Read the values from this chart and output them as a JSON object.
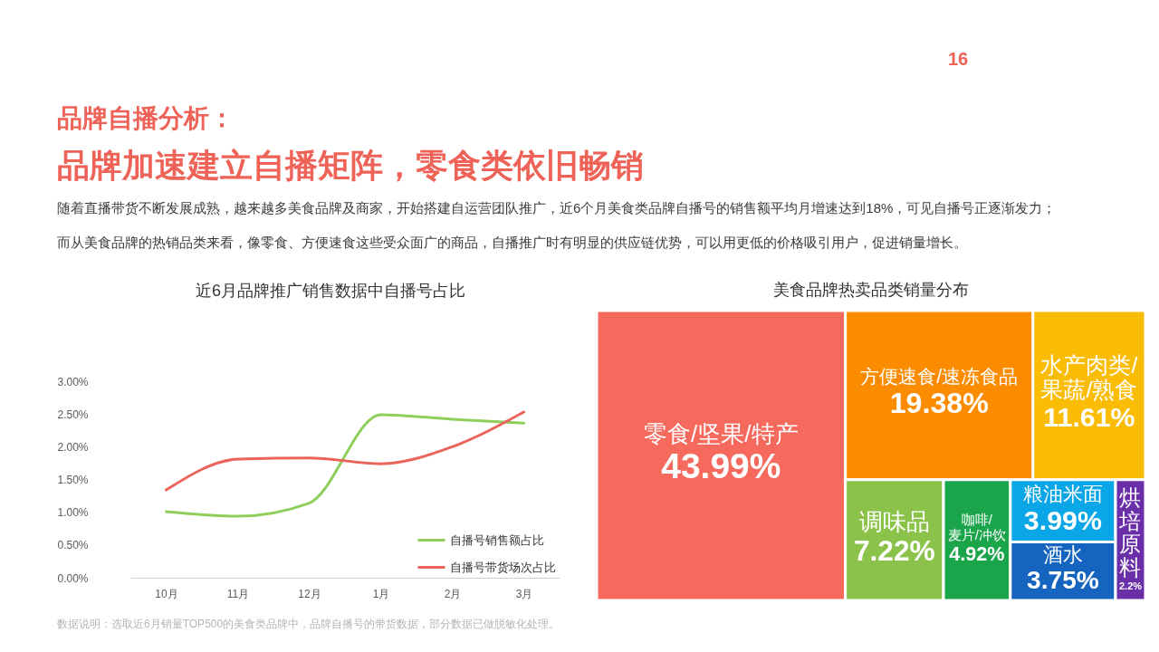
{
  "chart_data": [
    {
      "type": "other",
      "title": "品牌自播分析：",
      "subtitle": "品牌加速建立自播矩阵，零食类依旧畅销",
      "annotations": [
        "16",
        "随着直播带货不断发展成熟，越来越多美食品牌及商家，开始搭建自运营团队推广，近6个月美食类品牌自播号的销售额平均月增速达到18%，可见自播号正逐渐发力；",
        "而从美食品牌的热销品类来看，像零食、方便速食这些受众面广的商品，自播推广时有明显的供应链优势，可以用更低的价格吸引用户，促进销量增长。",
        "数据说明：选取近6月销量TOP500的美食类品牌中，品牌自播号的带货数据，部分数据已做脱敏化处理。"
      ]
    },
    {
      "type": "line",
      "title": "近6月品牌推广销售数据中自播号占比",
      "categories": [
        "10月",
        "11月",
        "12月",
        "1月",
        "2月",
        "3月"
      ],
      "series": [
        {
          "name": "自播号销售额占比",
          "color": "#8dcf5a",
          "values": [
            1.01,
            0.94,
            1.14,
            2.49,
            2.42,
            2.36
          ]
        },
        {
          "name": "自播号带货场次占比",
          "color": "#ea6459",
          "values": [
            1.34,
            1.81,
            1.83,
            1.74,
            2.0,
            2.53
          ]
        }
      ],
      "ylim": [
        0,
        3
      ],
      "yticks": [
        {
          "value": 0,
          "label": "0.00%"
        },
        {
          "value": 0.5,
          "label": "0.50%"
        },
        {
          "value": 1,
          "label": "1.00%"
        },
        {
          "value": 1.5,
          "label": "1.50%"
        },
        {
          "value": 2,
          "label": "2.00%"
        },
        {
          "value": 2.5,
          "label": "2.50%"
        },
        {
          "value": 3,
          "label": "3.00%"
        }
      ],
      "grid": false,
      "legend": "bottom right"
    },
    {
      "type": "other",
      "title": "美食品牌热卖品类销量分布",
      "categories": [
        "零食/坚果/特产",
        "方便速食/速冻食品",
        "水产肉类/果蔬/熟食",
        "调味品",
        "咖啡/麦片/冲饮",
        "粮油米面",
        "酒水",
        "烘培原料"
      ],
      "values": [
        43.99,
        19.38,
        11.61,
        7.22,
        4.92,
        3.99,
        3.75,
        2.2
      ],
      "value_labels": [
        "43.99%",
        "19.38%",
        "11.61%",
        "7.22%",
        "4.92%",
        "3.99%",
        "3.75%",
        "2.2%"
      ],
      "colors": [
        "#f66a5e",
        "#fb8c00",
        "#fbbc05",
        "#8bc34a",
        "#1aa54a",
        "#0aa6e8",
        "#1565c0",
        "#6a2fa8"
      ]
    }
  ]
}
